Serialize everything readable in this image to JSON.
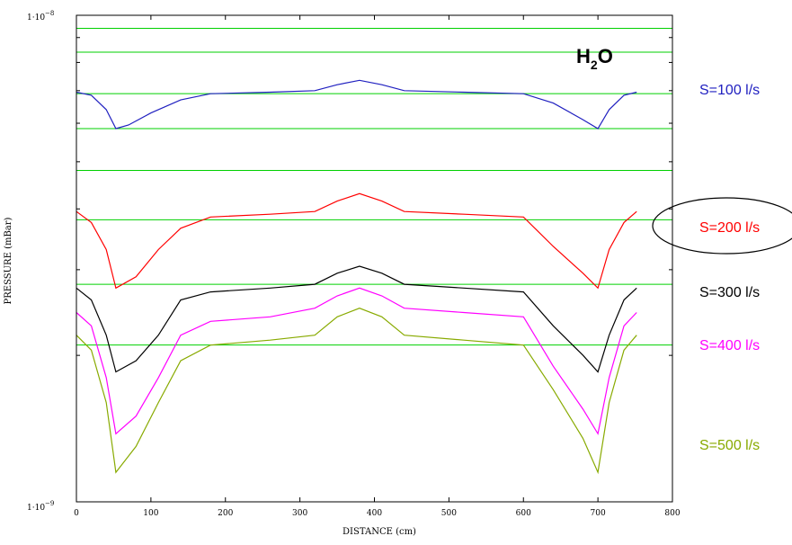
{
  "chart_data": {
    "type": "line",
    "title": "",
    "xlabel": "DISTANCE (cm)",
    "ylabel": "PRESSURE (mBar)",
    "species_label": {
      "base": "H",
      "sub": "2",
      "tail": "O"
    },
    "xlim": [
      0,
      800
    ],
    "ylim": [
      1e-09,
      1e-08
    ],
    "yscale": "log",
    "x_ticks": [
      "0",
      "100",
      "200",
      "300",
      "400",
      "500",
      "600",
      "700",
      "800"
    ],
    "y_tick_labels": {
      "top": {
        "mantissa": "1·10",
        "exp": "−8"
      },
      "bottom": {
        "mantissa": "1·10",
        "exp": "−9"
      }
    },
    "gridlines_y": [
      2.1e-09,
      2.8e-09,
      3.8e-09,
      4.8e-09,
      5.85e-09,
      6.9e-09,
      8.4e-09,
      9.4e-09
    ],
    "grid_color": "#00d000",
    "highlight_series": "S=200 l/s",
    "series": [
      {
        "name": "S=100 l/s",
        "color": "#2020c0",
        "points": [
          [
            0,
            6.95e-09
          ],
          [
            20,
            6.85e-09
          ],
          [
            40,
            6.4e-09
          ],
          [
            53,
            5.85e-09
          ],
          [
            70,
            5.95e-09
          ],
          [
            100,
            6.3e-09
          ],
          [
            140,
            6.7e-09
          ],
          [
            180,
            6.9e-09
          ],
          [
            260,
            6.95e-09
          ],
          [
            320,
            7e-09
          ],
          [
            350,
            7.2e-09
          ],
          [
            380,
            7.35e-09
          ],
          [
            410,
            7.2e-09
          ],
          [
            440,
            7e-09
          ],
          [
            520,
            6.95e-09
          ],
          [
            600,
            6.9e-09
          ],
          [
            640,
            6.6e-09
          ],
          [
            680,
            6.1e-09
          ],
          [
            700,
            5.85e-09
          ],
          [
            715,
            6.4e-09
          ],
          [
            735,
            6.85e-09
          ],
          [
            752,
            6.95e-09
          ]
        ]
      },
      {
        "name": "S=200 l/s",
        "color": "#ff0000",
        "points": [
          [
            0,
            3.95e-09
          ],
          [
            20,
            3.75e-09
          ],
          [
            40,
            3.3e-09
          ],
          [
            53,
            2.75e-09
          ],
          [
            80,
            2.9e-09
          ],
          [
            110,
            3.3e-09
          ],
          [
            140,
            3.65e-09
          ],
          [
            180,
            3.85e-09
          ],
          [
            260,
            3.9e-09
          ],
          [
            320,
            3.95e-09
          ],
          [
            350,
            4.15e-09
          ],
          [
            380,
            4.3e-09
          ],
          [
            410,
            4.15e-09
          ],
          [
            440,
            3.95e-09
          ],
          [
            520,
            3.9e-09
          ],
          [
            600,
            3.85e-09
          ],
          [
            640,
            3.35e-09
          ],
          [
            680,
            2.95e-09
          ],
          [
            700,
            2.75e-09
          ],
          [
            715,
            3.3e-09
          ],
          [
            735,
            3.75e-09
          ],
          [
            752,
            3.95e-09
          ]
        ]
      },
      {
        "name": "S=300 l/s",
        "color": "#000000",
        "points": [
          [
            0,
            2.75e-09
          ],
          [
            20,
            2.6e-09
          ],
          [
            40,
            2.2e-09
          ],
          [
            53,
            1.85e-09
          ],
          [
            80,
            1.95e-09
          ],
          [
            110,
            2.2e-09
          ],
          [
            140,
            2.6e-09
          ],
          [
            180,
            2.7e-09
          ],
          [
            260,
            2.75e-09
          ],
          [
            320,
            2.8e-09
          ],
          [
            350,
            2.95e-09
          ],
          [
            380,
            3.05e-09
          ],
          [
            410,
            2.95e-09
          ],
          [
            440,
            2.8e-09
          ],
          [
            520,
            2.75e-09
          ],
          [
            600,
            2.7e-09
          ],
          [
            640,
            2.3e-09
          ],
          [
            680,
            2e-09
          ],
          [
            700,
            1.85e-09
          ],
          [
            715,
            2.2e-09
          ],
          [
            735,
            2.6e-09
          ],
          [
            752,
            2.75e-09
          ]
        ]
      },
      {
        "name": "S=400 l/s",
        "color": "#ff00ff",
        "points": [
          [
            0,
            2.45e-09
          ],
          [
            20,
            2.3e-09
          ],
          [
            40,
            1.8e-09
          ],
          [
            53,
            1.38e-09
          ],
          [
            80,
            1.5e-09
          ],
          [
            110,
            1.8e-09
          ],
          [
            140,
            2.2e-09
          ],
          [
            180,
            2.35e-09
          ],
          [
            260,
            2.4e-09
          ],
          [
            320,
            2.5e-09
          ],
          [
            350,
            2.65e-09
          ],
          [
            380,
            2.75e-09
          ],
          [
            410,
            2.65e-09
          ],
          [
            440,
            2.5e-09
          ],
          [
            520,
            2.45e-09
          ],
          [
            600,
            2.4e-09
          ],
          [
            640,
            1.9e-09
          ],
          [
            680,
            1.55e-09
          ],
          [
            700,
            1.38e-09
          ],
          [
            715,
            1.8e-09
          ],
          [
            735,
            2.3e-09
          ],
          [
            752,
            2.45e-09
          ]
        ]
      },
      {
        "name": "S=500 l/s",
        "color": "#88aa00",
        "points": [
          [
            0,
            2.2e-09
          ],
          [
            20,
            2.05e-09
          ],
          [
            40,
            1.6e-09
          ],
          [
            53,
            1.15e-09
          ],
          [
            80,
            1.3e-09
          ],
          [
            110,
            1.6e-09
          ],
          [
            140,
            1.95e-09
          ],
          [
            180,
            2.1e-09
          ],
          [
            260,
            2.15e-09
          ],
          [
            320,
            2.2e-09
          ],
          [
            350,
            2.4e-09
          ],
          [
            380,
            2.5e-09
          ],
          [
            410,
            2.4e-09
          ],
          [
            440,
            2.2e-09
          ],
          [
            520,
            2.15e-09
          ],
          [
            600,
            2.1e-09
          ],
          [
            640,
            1.7e-09
          ],
          [
            680,
            1.35e-09
          ],
          [
            700,
            1.15e-09
          ],
          [
            715,
            1.6e-09
          ],
          [
            735,
            2.05e-09
          ],
          [
            752,
            2.2e-09
          ]
        ]
      }
    ]
  }
}
